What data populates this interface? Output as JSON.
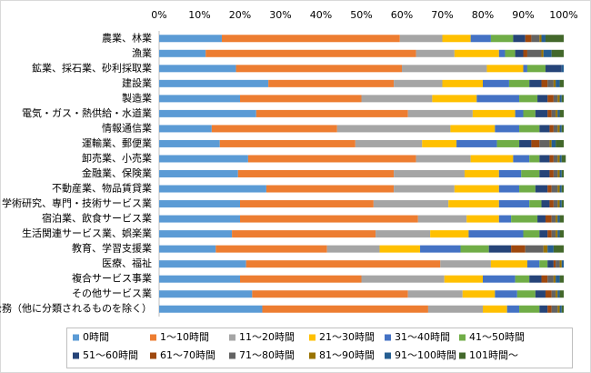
{
  "chart_data": {
    "type": "stacked-bar-horizontal",
    "categories": [
      "農業、林業",
      "漁業",
      "鉱業、採石業、砂利採取業",
      "建設業",
      "製造業",
      "電気・ガス・熱供給・水道業",
      "情報通信業",
      "運輸業、郵便業",
      "卸売業、小売業",
      "金融業、保険業",
      "不動産業、物品賃貸業",
      "学術研究、専門・技術サービス業",
      "宿泊業、飲食サービス業",
      "生活関連サービス業、娯楽業",
      "教育、学習支援業",
      "医療、福祉",
      "複合サービス事業",
      "その他サービス業",
      "公務（他に分類されるものを除く）"
    ],
    "series": [
      {
        "name": "0時間",
        "color": "#5b9bd5",
        "values": [
          15.5,
          11.5,
          19,
          27,
          20,
          24,
          13,
          15,
          22,
          19.5,
          26.5,
          20,
          20,
          18,
          14,
          21.5,
          20,
          23,
          25.5
        ]
      },
      {
        "name": "1～10時間",
        "color": "#ed7d31",
        "values": [
          44,
          52,
          41,
          31,
          30,
          37.5,
          31,
          33.5,
          41.5,
          38.5,
          31.5,
          33,
          44,
          35.5,
          27.5,
          48,
          30,
          38.5,
          41
        ]
      },
      {
        "name": "11～20時間",
        "color": "#a5a5a5",
        "values": [
          10.5,
          9.5,
          21,
          12,
          17.5,
          16,
          28,
          16.5,
          13.5,
          17.5,
          15,
          18.5,
          12,
          13.5,
          13,
          12.5,
          20.5,
          13.5,
          13.5
        ]
      },
      {
        "name": "21～30時間",
        "color": "#ffc000",
        "values": [
          7,
          11,
          9,
          10,
          11,
          10.5,
          11,
          8.5,
          10.5,
          8.5,
          11,
          12.5,
          8,
          9.5,
          10,
          9,
          9.5,
          8,
          6
        ]
      },
      {
        "name": "31～40時間",
        "color": "#4472c4",
        "values": [
          5,
          1.5,
          1,
          6.5,
          10.5,
          2,
          6,
          10,
          4,
          5.5,
          5,
          7.5,
          3,
          13.5,
          10,
          3,
          8,
          5.5,
          3
        ]
      },
      {
        "name": "41～50時間",
        "color": "#70ad47",
        "values": [
          5.5,
          2.5,
          4.5,
          5,
          4.5,
          3,
          5,
          5.5,
          2.5,
          4.5,
          4,
          3,
          6.5,
          4,
          7,
          2,
          3.5,
          4.5,
          5
        ]
      },
      {
        "name": "51～60時間",
        "color": "#264478",
        "values": [
          3,
          2,
          4,
          3,
          2.5,
          3,
          2.5,
          3,
          2.5,
          2.5,
          3,
          2,
          2,
          2,
          5.5,
          1.5,
          3,
          2.5,
          2
        ]
      },
      {
        "name": "61～70時間",
        "color": "#9e480e",
        "values": [
          1.5,
          1,
          0,
          1.5,
          1.5,
          1,
          1,
          2,
          1,
          1,
          1,
          1,
          1.5,
          1,
          3.5,
          0.5,
          1.5,
          1.5,
          1
        ]
      },
      {
        "name": "71～80時間",
        "color": "#636363",
        "values": [
          2,
          3.5,
          0,
          1.5,
          1,
          1,
          1,
          2.5,
          1,
          1,
          1.5,
          1,
          1,
          1,
          4.5,
          1,
          1.5,
          1,
          1.5
        ]
      },
      {
        "name": "81～90時間",
        "color": "#997300",
        "values": [
          0.5,
          0.5,
          0,
          0.5,
          0.5,
          0.5,
          0.5,
          0.5,
          0.5,
          0.5,
          0.5,
          0.5,
          0.5,
          0.5,
          1,
          0.5,
          0.5,
          0.5,
          0.5
        ]
      },
      {
        "name": "91～100時間",
        "color": "#255e91",
        "values": [
          1,
          2,
          0.5,
          1,
          0.5,
          0.5,
          0.5,
          1,
          0.5,
          0.5,
          0.5,
          0.5,
          0.5,
          0.5,
          1.5,
          0.5,
          1,
          0.5,
          0.5
        ]
      },
      {
        "name": "101時間～",
        "color": "#43682b",
        "values": [
          4.5,
          3,
          0,
          1,
          0.5,
          1,
          0.5,
          2,
          1,
          0.5,
          0.5,
          0.5,
          1,
          1,
          2.5,
          0,
          1,
          1,
          0.5
        ]
      }
    ],
    "xlim": [
      0,
      100
    ],
    "xticks": [
      {
        "value": 0,
        "label": "0%"
      },
      {
        "value": 10,
        "label": "10%"
      },
      {
        "value": 20,
        "label": "20%"
      },
      {
        "value": 30,
        "label": "30%"
      },
      {
        "value": 40,
        "label": "40%"
      },
      {
        "value": 50,
        "label": "50%"
      },
      {
        "value": 60,
        "label": "60%"
      },
      {
        "value": 70,
        "label": "70%"
      },
      {
        "value": 80,
        "label": "80%"
      },
      {
        "value": 90,
        "label": "90%"
      },
      {
        "value": 100,
        "label": "100%"
      }
    ],
    "grid": false,
    "legend": "bottom"
  }
}
